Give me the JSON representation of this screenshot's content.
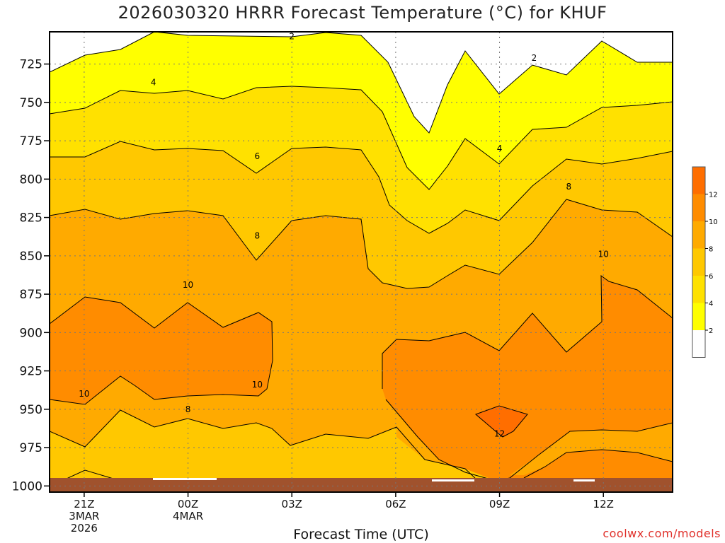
{
  "chart_data": {
    "type": "contour",
    "title": "2026030320 HRRR Forecast Temperature (°C) for KHUF",
    "xlabel": "Forecast Time (UTC)",
    "credit": "coolwx.com/models",
    "y_ticks": [
      "725",
      "750",
      "775",
      "800",
      "825",
      "850",
      "875",
      "900",
      "925",
      "950",
      "975",
      "1000"
    ],
    "y_values": [
      725,
      750,
      775,
      800,
      825,
      850,
      875,
      900,
      925,
      950,
      975,
      1000
    ],
    "y_range": [
      704,
      1004
    ],
    "x_ticks": [
      {
        "hour": 1,
        "lines": [
          "21Z",
          "3MAR",
          "2026"
        ]
      },
      {
        "hour": 4,
        "lines": [
          "00Z",
          "4MAR"
        ]
      },
      {
        "hour": 7,
        "lines": [
          "03Z"
        ]
      },
      {
        "hour": 10,
        "lines": [
          "06Z"
        ]
      },
      {
        "hour": 13,
        "lines": [
          "09Z"
        ]
      },
      {
        "hour": 16,
        "lines": [
          "12Z"
        ]
      }
    ],
    "x_range": [
      0,
      18
    ],
    "x_units": "hours since 20Z 3MAR 2026",
    "contour_levels": [
      2,
      4,
      6,
      8,
      10,
      12
    ],
    "contour_labels": [
      {
        "text": "2",
        "hour": 7.0,
        "pressure": 707
      },
      {
        "text": "2",
        "hour": 14.0,
        "pressure": 721
      },
      {
        "text": "4",
        "hour": 3.0,
        "pressure": 737
      },
      {
        "text": "4",
        "hour": 13.0,
        "pressure": 780
      },
      {
        "text": "6",
        "hour": 6.0,
        "pressure": 785
      },
      {
        "text": "8",
        "hour": 6.0,
        "pressure": 837
      },
      {
        "text": "8",
        "hour": 15.0,
        "pressure": 805
      },
      {
        "text": "10",
        "hour": 4.0,
        "pressure": 869
      },
      {
        "text": "10",
        "hour": 16.0,
        "pressure": 849
      },
      {
        "text": "10",
        "hour": 1.0,
        "pressure": 940
      },
      {
        "text": "10",
        "hour": 6.0,
        "pressure": 934
      },
      {
        "text": "8",
        "hour": 4.0,
        "pressure": 950
      },
      {
        "text": "12",
        "hour": 13.0,
        "pressure": 966
      }
    ],
    "colorbar": {
      "labels": [
        "2",
        "4",
        "6",
        "8",
        "10",
        "12"
      ],
      "colors": [
        "#ffffff",
        "#ffff00",
        "#ffe100",
        "#ffc800",
        "#ffaa00",
        "#ff8c00",
        "#ff6e00"
      ]
    },
    "grid": "dotted",
    "legend": "colorbar-right"
  }
}
